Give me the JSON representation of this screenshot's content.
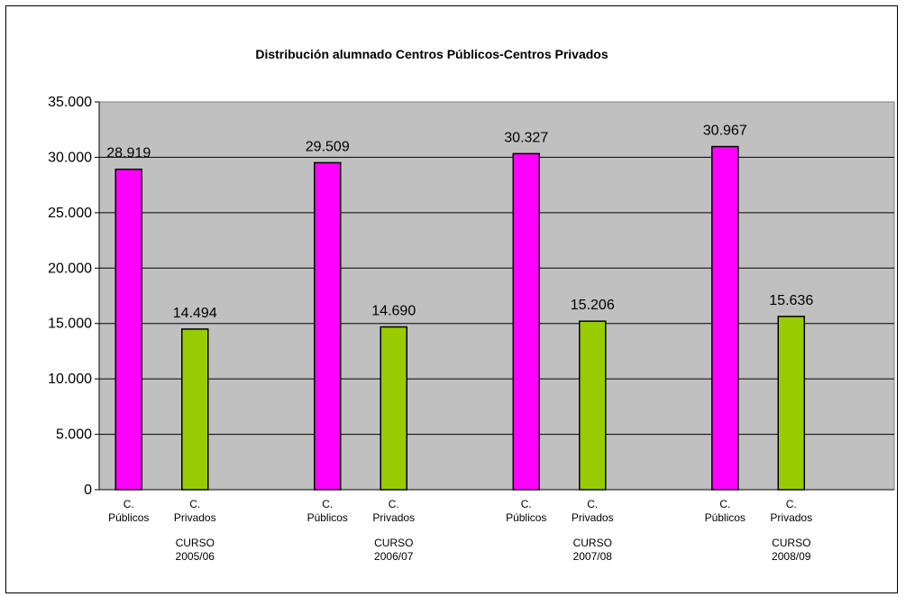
{
  "chart_data": {
    "type": "bar",
    "title": "Distribución alumnado Centros Públicos-Centros Privados",
    "ylim": [
      0,
      35000
    ],
    "yticks": [
      0,
      5000,
      10000,
      15000,
      20000,
      25000,
      30000,
      35000
    ],
    "ytick_labels": [
      "0",
      "5.000",
      "10.000",
      "15.000",
      "20.000",
      "25.000",
      "30.000",
      "35.000"
    ],
    "groups": [
      {
        "label_line1": "CURSO",
        "label_line2": "2005/06",
        "bars": [
          {
            "cat_line1": "C.",
            "cat_line2": "Públicos",
            "value": 28919,
            "value_label": "28.919",
            "color": "#ff00ff"
          },
          {
            "cat_line1": "C.",
            "cat_line2": "Privados",
            "value": 14494,
            "value_label": "14.494",
            "color": "#99cc00"
          }
        ]
      },
      {
        "label_line1": "CURSO",
        "label_line2": "2006/07",
        "bars": [
          {
            "cat_line1": "C.",
            "cat_line2": "Públicos",
            "value": 29509,
            "value_label": "29.509",
            "color": "#ff00ff"
          },
          {
            "cat_line1": "C.",
            "cat_line2": "Privados",
            "value": 14690,
            "value_label": "14.690",
            "color": "#99cc00"
          }
        ]
      },
      {
        "label_line1": "CURSO",
        "label_line2": "2007/08",
        "bars": [
          {
            "cat_line1": "C.",
            "cat_line2": "Públicos",
            "value": 30327,
            "value_label": "30.327",
            "color": "#ff00ff"
          },
          {
            "cat_line1": "C.",
            "cat_line2": "Privados",
            "value": 15206,
            "value_label": "15.206",
            "color": "#99cc00"
          }
        ]
      },
      {
        "label_line1": "CURSO",
        "label_line2": "2008/09",
        "bars": [
          {
            "cat_line1": "C.",
            "cat_line2": "Públicos",
            "value": 30967,
            "value_label": "30.967",
            "color": "#ff00ff"
          },
          {
            "cat_line1": "C.",
            "cat_line2": "Privados",
            "value": 15636,
            "value_label": "15.636",
            "color": "#99cc00"
          }
        ]
      }
    ],
    "plot_background": "#c0c0c0",
    "grid": true
  }
}
